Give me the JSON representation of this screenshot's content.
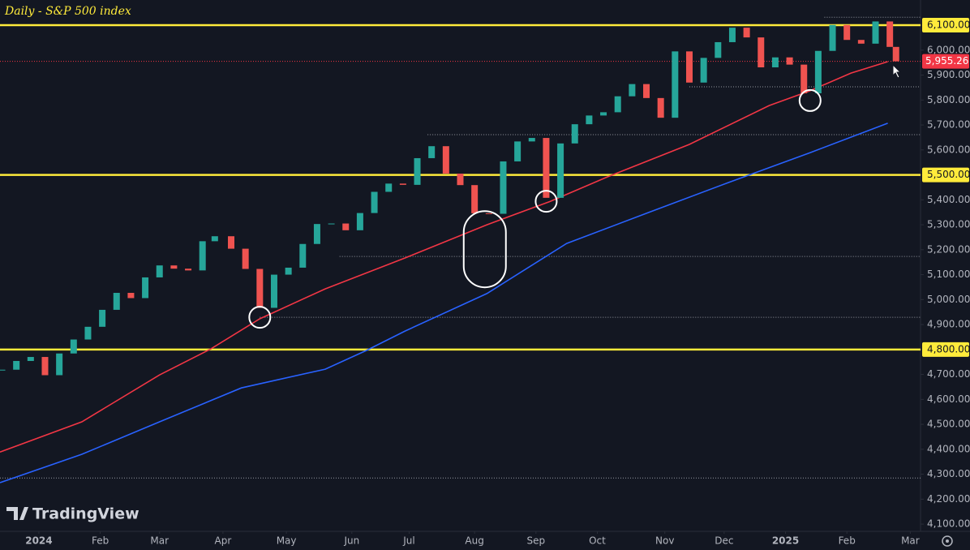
{
  "chart_data": {
    "type": "candlestick",
    "title": "Daily - S&P 500 index",
    "brand": "TradingView",
    "x": [
      "2023-12-15",
      "2023-12-22",
      "2023-12-29",
      "2024-01-05",
      "2024-01-12",
      "2024-01-19",
      "2024-01-26",
      "2024-02-02",
      "2024-02-09",
      "2024-02-16",
      "2024-02-23",
      "2024-03-01",
      "2024-03-08",
      "2024-03-15",
      "2024-03-22",
      "2024-03-28",
      "2024-04-05",
      "2024-04-12",
      "2024-04-19",
      "2024-04-26",
      "2024-05-03",
      "2024-05-10",
      "2024-05-17",
      "2024-05-24",
      "2024-05-31",
      "2024-06-07",
      "2024-06-14",
      "2024-06-21",
      "2024-06-28",
      "2024-07-05",
      "2024-07-12",
      "2024-07-19",
      "2024-07-26",
      "2024-08-02",
      "2024-08-09",
      "2024-08-16",
      "2024-08-23",
      "2024-08-30",
      "2024-09-06",
      "2024-09-13",
      "2024-09-20",
      "2024-09-27",
      "2024-10-04",
      "2024-10-11",
      "2024-10-18",
      "2024-10-25",
      "2024-11-01",
      "2024-11-08",
      "2024-11-15",
      "2024-11-22",
      "2024-11-29",
      "2024-12-06",
      "2024-12-13",
      "2024-12-20",
      "2024-12-27",
      "2025-01-03",
      "2025-01-10",
      "2025-01-17",
      "2025-01-24",
      "2025-01-31",
      "2025-02-07",
      "2025-02-14",
      "2025-02-21",
      "2025-02-24"
    ],
    "close": [
      4719,
      4754,
      4770,
      4697,
      4784,
      4840,
      4891,
      4959,
      5027,
      5006,
      5089,
      5137,
      5124,
      5117,
      5234,
      5254,
      5204,
      5123,
      4967,
      5100,
      5128,
      5223,
      5303,
      5305,
      5278,
      5347,
      5432,
      5465,
      5460,
      5567,
      5615,
      5505,
      5459,
      5346,
      5344,
      5554,
      5634,
      5648,
      5408,
      5626,
      5703,
      5738,
      5751,
      5815,
      5864,
      5808,
      5729,
      5995,
      5870,
      5969,
      6032,
      6090,
      6051,
      5931,
      5971,
      5942,
      5827,
      5997,
      6101,
      6041,
      6026,
      6115,
      6013,
      5955.26
    ],
    "up_color": "#26a69a",
    "down_color": "#ef5350",
    "last_price": {
      "value": 5955.26,
      "label": "5,955.26"
    },
    "series": [
      {
        "name": "MA 100",
        "color": "#f23645",
        "x": [
          "2023-12-14",
          "2024-01-23",
          "2024-03-01",
          "2024-03-26",
          "2024-04-19",
          "2024-05-21",
          "2024-06-29",
          "2024-08-08",
          "2024-09-08",
          "2024-10-06",
          "2024-11-15",
          "2024-12-24",
          "2025-01-13",
          "2025-02-02",
          "2025-02-20"
        ],
        "values": [
          4389,
          4510,
          4698,
          4802,
          4923,
          5043,
          5167,
          5300,
          5394,
          5492,
          5622,
          5778,
          5837,
          5908,
          5954
        ]
      },
      {
        "name": "MA 200",
        "color": "#2962ff",
        "x": [
          "2023-12-14",
          "2024-01-23",
          "2024-03-01",
          "2024-04-10",
          "2024-05-21",
          "2024-06-10",
          "2024-06-29",
          "2024-08-08",
          "2024-09-16",
          "2024-10-26",
          "2024-12-04",
          "2025-01-13",
          "2025-02-20"
        ],
        "values": [
          4266,
          4380,
          4510,
          4646,
          4721,
          4796,
          4874,
          5024,
          5225,
          5349,
          5469,
          5589,
          5707
        ]
      }
    ],
    "levels": [
      {
        "value": 6100,
        "color": "#ffeb3b",
        "style": "solid",
        "from": "2023-12-14"
      },
      {
        "value": 5500,
        "color": "#ffeb3b",
        "style": "solid",
        "from": "2023-12-14"
      },
      {
        "value": 4800,
        "color": "#ffeb3b",
        "style": "solid",
        "from": "2023-12-14"
      },
      {
        "value": 6132,
        "color": "#9598a1",
        "style": "dotted",
        "from": "2025-01-20"
      },
      {
        "value": 5853,
        "color": "#9598a1",
        "style": "dotted",
        "from": "2024-11-15"
      },
      {
        "value": 5661,
        "color": "#9598a1",
        "style": "dotted",
        "from": "2024-07-10"
      },
      {
        "value": 5173,
        "color": "#9598a1",
        "style": "dotted",
        "from": "2024-05-28"
      },
      {
        "value": 4929,
        "color": "#9598a1",
        "style": "dotted",
        "from": "2024-04-19"
      },
      {
        "value": 4285,
        "color": "#9598a1",
        "style": "dotted",
        "from": "2023-12-14"
      },
      {
        "value": 5955.26,
        "color": "#f23645",
        "style": "dotted",
        "from": "2023-12-14"
      }
    ],
    "annotations": [
      {
        "x": "2024-04-19",
        "y": 4929,
        "shape": "circle"
      },
      {
        "x": "2024-08-07",
        "y": 5202,
        "shape": "ellipse"
      },
      {
        "x": "2024-09-06",
        "y": 5394,
        "shape": "circle"
      },
      {
        "x": "2025-01-13",
        "y": 5798,
        "shape": "circle"
      }
    ],
    "xlim": [
      "2023-12-14",
      "2025-03-08"
    ],
    "xticks": [
      {
        "value": "2024-01-02",
        "label": "2024"
      },
      {
        "value": "2024-02-01",
        "label": "Feb"
      },
      {
        "value": "2024-03-01",
        "label": "Mar"
      },
      {
        "value": "2024-04-01",
        "label": "Apr"
      },
      {
        "value": "2024-05-02",
        "label": "May"
      },
      {
        "value": "2024-06-03",
        "label": "Jun"
      },
      {
        "value": "2024-07-01",
        "label": "Jul"
      },
      {
        "value": "2024-08-02",
        "label": "Aug"
      },
      {
        "value": "2024-09-01",
        "label": "Sep"
      },
      {
        "value": "2024-10-01",
        "label": "Oct"
      },
      {
        "value": "2024-11-03",
        "label": "Nov"
      },
      {
        "value": "2024-12-02",
        "label": "Dec"
      },
      {
        "value": "2025-01-01",
        "label": "2025"
      },
      {
        "value": "2025-01-31",
        "label": "Feb"
      },
      {
        "value": "2025-03-03",
        "label": "Mar"
      }
    ],
    "ylim": [
      4071,
      6201
    ],
    "yticks": [
      {
        "value": 4100,
        "label": "4,100.00"
      },
      {
        "value": 4200,
        "label": "4,200.00"
      },
      {
        "value": 4300,
        "label": "4,300.00"
      },
      {
        "value": 4400,
        "label": "4,400.00"
      },
      {
        "value": 4500,
        "label": "4,500.00"
      },
      {
        "value": 4600,
        "label": "4,600.00"
      },
      {
        "value": 4700,
        "label": "4,700.00"
      },
      {
        "value": 4800,
        "label": "4,800.00"
      },
      {
        "value": 4900,
        "label": "4,900.00"
      },
      {
        "value": 5000,
        "label": "5,000.00"
      },
      {
        "value": 5100,
        "label": "5,100.00"
      },
      {
        "value": 5200,
        "label": "5,200.00"
      },
      {
        "value": 5300,
        "label": "5,300.00"
      },
      {
        "value": 5400,
        "label": "5,400.00"
      },
      {
        "value": 5500,
        "label": "5,500.00"
      },
      {
        "value": 5600,
        "label": "5,600.00"
      },
      {
        "value": 5700,
        "label": "5,700.00"
      },
      {
        "value": 5800,
        "label": "5,800.00"
      },
      {
        "value": 5900,
        "label": "5,900.00"
      },
      {
        "value": 6000,
        "label": "6,000.00"
      },
      {
        "value": 6100,
        "label": "6,100.00"
      }
    ]
  }
}
